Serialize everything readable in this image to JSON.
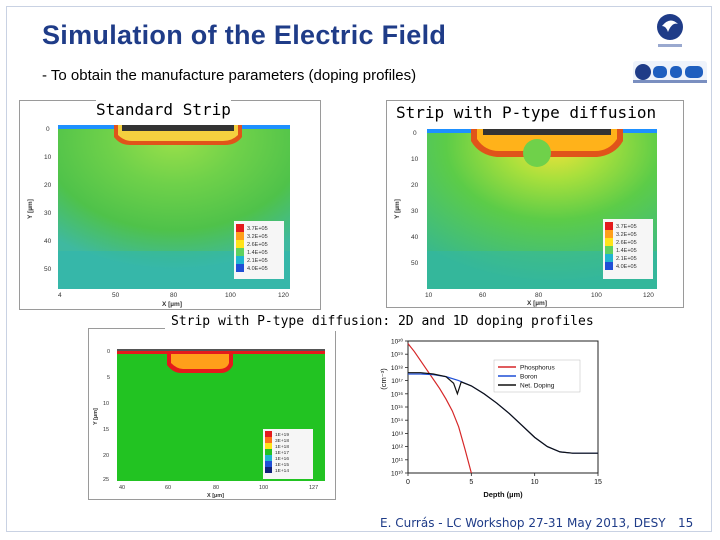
{
  "title": "Simulation of the Electric Field",
  "subtitle": "- To obtain the manufacture parameters (doping profiles)",
  "panels": {
    "standard_strip": {
      "caption": "Standard Strip",
      "y_axis_label": "Y [µm]",
      "x_axis_label": "X [µm]",
      "y_ticks": [
        "0",
        "10",
        "20",
        "30",
        "40",
        "50"
      ],
      "x_ticks": [
        "4",
        "50",
        "80",
        "100",
        "120"
      ],
      "legend": [
        "3.7E+05",
        "3.2E+05",
        "2.6E+05",
        "1.4E+05",
        "2.1E+05",
        "4.0E+05"
      ]
    },
    "ptype_strip": {
      "caption": "Strip with P-type diffusion",
      "y_axis_label": "Y [µm]",
      "x_axis_label": "X [µm]",
      "y_ticks": [
        "0",
        "10",
        "20",
        "30",
        "40",
        "50"
      ],
      "x_ticks": [
        "10",
        "60",
        "80",
        "100",
        "120"
      ],
      "legend": [
        "3.7E+05",
        "3.2E+05",
        "2.6E+05",
        "1.4E+05",
        "2.1E+05",
        "4.0E+05"
      ]
    },
    "doping_2d": {
      "caption": "Strip with P-type diffusion: 2D and 1D doping profiles",
      "y_axis_label": "Y [µm]",
      "x_axis_label": "X [µm]",
      "y_ticks": [
        "0",
        "5",
        "10",
        "15",
        "20",
        "25"
      ],
      "x_ticks": [
        "40",
        "60",
        "80",
        "100",
        "127"
      ],
      "legend": [
        "1E+19",
        "3E+18",
        "1E+18",
        "1E+17",
        "1E+16",
        "1E+15",
        "1E+14"
      ]
    }
  },
  "chart_data": {
    "type": "line",
    "title": "",
    "xlabel": "Depth (µm)",
    "ylabel": "(cm⁻³)",
    "x_ticks": [
      "0",
      "5",
      "10",
      "15"
    ],
    "y_ticks": [
      "10²⁰",
      "10¹⁹",
      "10¹⁸",
      "10¹⁷",
      "10¹⁶",
      "10¹⁵",
      "10¹⁴",
      "10¹³",
      "10¹²",
      "10¹¹",
      "10¹⁰"
    ],
    "xlim": [
      0,
      15
    ],
    "ylog_lim": [
      10,
      20
    ],
    "legend_position": "top-right",
    "series": [
      {
        "name": "Phosphorus",
        "color": "#d62728",
        "x": [
          0,
          0.5,
          1,
          1.5,
          2,
          2.5,
          3,
          3.5,
          4,
          4.5,
          5
        ],
        "log_y": [
          19.8,
          19.2,
          18.5,
          17.8,
          17.1,
          16.4,
          15.6,
          14.7,
          13.5,
          11.8,
          10.0
        ]
      },
      {
        "name": "Boron",
        "color": "#1f4fd6",
        "x": [
          0,
          1,
          2,
          3,
          4,
          5,
          6,
          7,
          8,
          9,
          10,
          11,
          12,
          13,
          14,
          15
        ],
        "log_y": [
          17.5,
          17.5,
          17.45,
          17.3,
          17.0,
          16.6,
          16.0,
          15.3,
          14.5,
          13.6,
          12.7,
          12.0,
          11.6,
          11.5,
          11.5,
          11.5
        ]
      },
      {
        "name": "Net. Doping",
        "color": "#111111",
        "x": [
          0,
          1,
          2,
          3,
          3.6,
          3.9,
          4.2,
          5,
          6,
          7,
          8,
          9,
          10,
          11,
          12,
          13,
          14,
          15
        ],
        "log_y": [
          17.6,
          17.6,
          17.5,
          17.3,
          16.8,
          16.0,
          16.9,
          16.6,
          16.0,
          15.3,
          14.5,
          13.6,
          12.7,
          12.0,
          11.6,
          11.5,
          11.5,
          11.5
        ]
      }
    ]
  },
  "footer": "E. Currás -  LC Workshop 27-31 May 2013, DESY",
  "page_number": "15",
  "colors": {
    "title": "#1f3c88",
    "field_green": "#3ec13e",
    "substrate_green": "#22c322"
  }
}
